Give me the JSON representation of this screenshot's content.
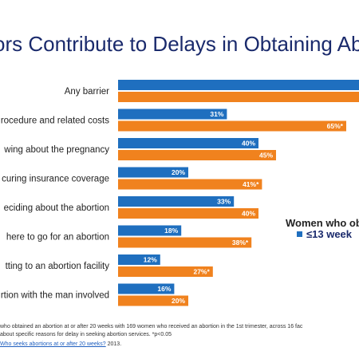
{
  "title": "ors Contribute to Delays in Obtaining Ab",
  "colors": {
    "series1": "#1f6fbf",
    "series2": "#f0821e"
  },
  "legend": {
    "title": "Women who ob",
    "entry": "≤13 week"
  },
  "footnote_lines": [
    "who obtained an abortion at or after 20 weeks with 169 women who received an abortion in the 1st trimester, across 16 fac",
    "about specific reasons for delay in seeking abortion services. *p<0.05"
  ],
  "source": {
    "link": "Who seeks abortions at or after 20 weeks?",
    "rest": " 2013."
  },
  "chart_data": {
    "type": "bar",
    "orientation": "horizontal",
    "categories": [
      "Any barrier",
      "rocedure and related costs",
      "wing about the pregnancy",
      "curing insurance coverage",
      "eciding about the abortion",
      "here to go for an abortion",
      "tting to an abortion facility",
      "rtion with the man involved"
    ],
    "series": [
      {
        "name": "≤13 week",
        "values": [
          null,
          31,
          40,
          20,
          33,
          18,
          12,
          16
        ],
        "labels": [
          "",
          "31%",
          "40%",
          "20%",
          "33%",
          "18%",
          "12%",
          "16%"
        ]
      },
      {
        "values": [
          null,
          65,
          45,
          41,
          40,
          38,
          27,
          20
        ],
        "labels": [
          "",
          "65%*",
          "45%",
          "41%*",
          "40%",
          "38%*",
          "27%*",
          "20%"
        ]
      }
    ],
    "legend_position": "right"
  }
}
